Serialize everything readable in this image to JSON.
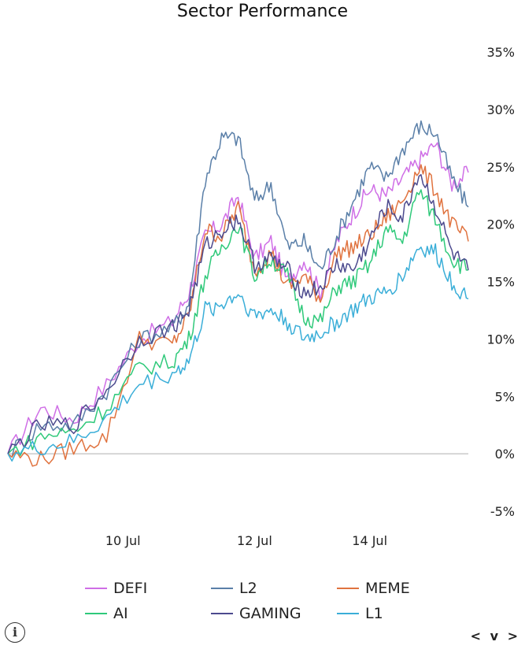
{
  "chart_data": {
    "type": "line",
    "title": "Sector Performance",
    "xlabel": "",
    "ylabel": "",
    "x_ticks": [
      "10 Jul",
      "12 Jul",
      "14 Jul"
    ],
    "y_ticks": [
      "35%",
      "30%",
      "25%",
      "20%",
      "15%",
      "10%",
      "5%",
      "0%",
      "-5%"
    ],
    "ylim": [
      -5,
      35
    ],
    "x_range": [
      "2024-07-08 12:00",
      "2024-07-15 12:00"
    ],
    "grid": false,
    "legend_position": "bottom",
    "series": [
      {
        "name": "DEFI",
        "color": "#cf6ee6",
        "x": [
          "07-08 12:00",
          "07-09 00:00",
          "07-09 12:00",
          "07-10 00:00",
          "07-10 12:00",
          "07-11 00:00",
          "07-11 06:00",
          "07-11 12:00",
          "07-11 18:00",
          "07-12 00:00",
          "07-12 06:00",
          "07-12 12:00",
          "07-12 18:00",
          "07-13 00:00",
          "07-13 06:00",
          "07-13 12:00",
          "07-13 18:00",
          "07-14 00:00",
          "07-14 06:00",
          "07-14 12:00",
          "07-14 18:00",
          "07-15 00:00",
          "07-15 06:00",
          "07-15 12:00"
        ],
        "values": [
          0.0,
          4.0,
          3.0,
          6.0,
          10.0,
          11.5,
          14.0,
          19.0,
          20.0,
          22.5,
          17.0,
          18.5,
          15.0,
          17.0,
          14.0,
          18.5,
          21.0,
          23.0,
          22.5,
          24.0,
          25.5,
          27.0,
          23.5,
          24.5
        ]
      },
      {
        "name": "L2",
        "color": "#5a7fa8",
        "x": [
          "07-08 12:00",
          "07-09 00:00",
          "07-09 12:00",
          "07-10 00:00",
          "07-10 12:00",
          "07-11 00:00",
          "07-11 06:00",
          "07-11 12:00",
          "07-11 18:00",
          "07-12 00:00",
          "07-12 06:00",
          "07-12 12:00",
          "07-12 18:00",
          "07-13 00:00",
          "07-13 06:00",
          "07-13 12:00",
          "07-13 18:00",
          "07-14 00:00",
          "07-14 06:00",
          "07-14 12:00",
          "07-14 18:00",
          "07-15 00:00",
          "07-15 06:00",
          "07-15 12:00"
        ],
        "values": [
          0.0,
          2.5,
          2.5,
          5.5,
          10.0,
          11.0,
          13.0,
          24.0,
          27.5,
          27.5,
          22.0,
          23.5,
          18.0,
          18.5,
          16.0,
          19.0,
          22.0,
          25.0,
          24.0,
          26.5,
          28.5,
          28.0,
          24.0,
          21.5
        ]
      },
      {
        "name": "MEME",
        "color": "#e0733f",
        "x": [
          "07-08 12:00",
          "07-09 00:00",
          "07-09 12:00",
          "07-10 00:00",
          "07-10 12:00",
          "07-11 00:00",
          "07-11 06:00",
          "07-11 12:00",
          "07-11 18:00",
          "07-12 00:00",
          "07-12 06:00",
          "07-12 12:00",
          "07-12 18:00",
          "07-13 00:00",
          "07-13 06:00",
          "07-13 12:00",
          "07-13 18:00",
          "07-14 00:00",
          "07-14 06:00",
          "07-14 12:00",
          "07-14 18:00",
          "07-15 00:00",
          "07-15 06:00",
          "07-15 12:00"
        ],
        "values": [
          0.0,
          -0.5,
          0.5,
          1.5,
          10.0,
          9.5,
          12.0,
          19.5,
          19.0,
          21.5,
          16.0,
          17.5,
          14.5,
          15.5,
          13.5,
          17.5,
          18.0,
          19.0,
          20.5,
          22.0,
          25.0,
          23.0,
          20.0,
          18.5
        ]
      },
      {
        "name": "AI",
        "color": "#2fc97a",
        "x": [
          "07-08 12:00",
          "07-09 00:00",
          "07-09 12:00",
          "07-10 00:00",
          "07-10 12:00",
          "07-11 00:00",
          "07-11 06:00",
          "07-11 12:00",
          "07-11 18:00",
          "07-12 00:00",
          "07-12 06:00",
          "07-12 12:00",
          "07-12 18:00",
          "07-13 00:00",
          "07-13 06:00",
          "07-13 12:00",
          "07-13 18:00",
          "07-14 00:00",
          "07-14 06:00",
          "07-14 12:00",
          "07-14 18:00",
          "07-15 00:00",
          "07-15 06:00",
          "07-15 12:00"
        ],
        "values": [
          0.0,
          1.5,
          2.0,
          4.0,
          7.5,
          8.0,
          10.0,
          15.5,
          18.0,
          20.0,
          15.5,
          17.0,
          15.5,
          12.0,
          11.5,
          14.5,
          15.0,
          16.5,
          19.5,
          18.5,
          23.0,
          20.5,
          17.0,
          16.0
        ]
      },
      {
        "name": "GAMING",
        "color": "#4c4a8e",
        "x": [
          "07-08 12:00",
          "07-09 00:00",
          "07-09 12:00",
          "07-10 00:00",
          "07-10 12:00",
          "07-11 00:00",
          "07-11 06:00",
          "07-11 12:00",
          "07-11 18:00",
          "07-12 00:00",
          "07-12 06:00",
          "07-12 12:00",
          "07-12 18:00",
          "07-13 00:00",
          "07-13 06:00",
          "07-13 12:00",
          "07-13 18:00",
          "07-14 00:00",
          "07-14 06:00",
          "07-14 12:00",
          "07-14 18:00",
          "07-15 00:00",
          "07-15 06:00",
          "07-15 12:00"
        ],
        "values": [
          0.0,
          2.5,
          2.5,
          5.5,
          10.0,
          11.0,
          12.5,
          18.0,
          19.5,
          20.5,
          16.5,
          17.0,
          16.0,
          14.0,
          14.5,
          16.5,
          16.0,
          18.5,
          21.5,
          20.5,
          24.5,
          21.5,
          17.5,
          16.0
        ]
      },
      {
        "name": "L1",
        "color": "#3aaed8",
        "x": [
          "07-08 12:00",
          "07-09 00:00",
          "07-09 12:00",
          "07-10 00:00",
          "07-10 12:00",
          "07-11 00:00",
          "07-11 06:00",
          "07-11 12:00",
          "07-11 18:00",
          "07-12 00:00",
          "07-12 06:00",
          "07-12 12:00",
          "07-12 18:00",
          "07-13 00:00",
          "07-13 06:00",
          "07-13 12:00",
          "07-13 18:00",
          "07-14 00:00",
          "07-14 06:00",
          "07-14 12:00",
          "07-14 18:00",
          "07-15 00:00",
          "07-15 06:00",
          "07-15 12:00"
        ],
        "values": [
          0.0,
          0.5,
          1.0,
          3.0,
          6.0,
          7.0,
          8.0,
          12.5,
          13.0,
          14.0,
          12.0,
          12.5,
          11.5,
          10.0,
          10.5,
          11.5,
          12.5,
          13.5,
          14.0,
          15.5,
          18.0,
          17.5,
          15.0,
          13.5
        ]
      }
    ]
  },
  "legend": {
    "items": [
      {
        "label": "DEFI",
        "color": "#cf6ee6"
      },
      {
        "label": "L2",
        "color": "#5a7fa8"
      },
      {
        "label": "MEME",
        "color": "#e0733f"
      },
      {
        "label": "AI",
        "color": "#2fc97a"
      },
      {
        "label": "GAMING",
        "color": "#4c4a8e"
      },
      {
        "label": "L1",
        "color": "#3aaed8"
      }
    ]
  },
  "controls": {
    "info_icon": "info-icon",
    "nav_label": "< v >"
  }
}
